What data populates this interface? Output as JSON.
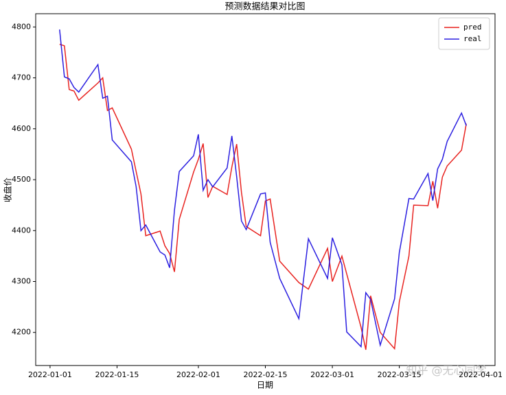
{
  "chart_data": {
    "type": "line",
    "title": "预测数据结果对比图",
    "x_label": "日期",
    "y_label": "收盘价",
    "annotation": "知乎 @无心同学",
    "x": [
      "2022-01-03",
      "2022-01-04",
      "2022-01-05",
      "2022-01-06",
      "2022-01-07",
      "2022-01-11",
      "2022-01-12",
      "2022-01-13",
      "2022-01-14",
      "2022-01-18",
      "2022-01-19",
      "2022-01-20",
      "2022-01-21",
      "2022-01-24",
      "2022-01-25",
      "2022-01-26",
      "2022-01-27",
      "2022-01-28",
      "2022-01-31",
      "2022-02-01",
      "2022-02-02",
      "2022-02-03",
      "2022-02-04",
      "2022-02-07",
      "2022-02-08",
      "2022-02-09",
      "2022-02-10",
      "2022-02-11",
      "2022-02-14",
      "2022-02-15",
      "2022-02-16",
      "2022-02-18",
      "2022-02-22",
      "2022-02-24",
      "2022-02-28",
      "2022-03-01",
      "2022-03-03",
      "2022-03-04",
      "2022-03-07",
      "2022-03-08",
      "2022-03-09",
      "2022-03-11",
      "2022-03-14",
      "2022-03-15",
      "2022-03-17",
      "2022-03-18",
      "2022-03-21",
      "2022-03-22",
      "2022-03-23",
      "2022-03-24",
      "2022-03-25",
      "2022-03-28",
      "2022-03-29"
    ],
    "series": [
      {
        "name": "pred",
        "color": "#e8221f",
        "values": [
          4766,
          4763,
          4677,
          4674,
          4656,
          4690,
          4700,
          4636,
          4641,
          4560,
          4516,
          4472,
          4390,
          4399,
          4370,
          4355,
          4319,
          4422,
          4515,
          4540,
          4571,
          4465,
          4487,
          4471,
          4525,
          4570,
          4475,
          4408,
          4390,
          4458,
          4462,
          4340,
          4298,
          4285,
          4365,
          4300,
          4350,
          4315,
          4210,
          4166,
          4272,
          4200,
          4168,
          4260,
          4350,
          4450,
          4449,
          4497,
          4444,
          4505,
          4527,
          4558,
          4610
        ]
      },
      {
        "name": "real",
        "color": "#2a1ee0",
        "values": [
          4795,
          4702,
          4698,
          4681,
          4672,
          4726,
          4660,
          4664,
          4578,
          4535,
          4486,
          4400,
          4411,
          4358,
          4352,
          4327,
          4440,
          4516,
          4547,
          4589,
          4479,
          4500,
          4486,
          4523,
          4586,
          4506,
          4419,
          4402,
          4472,
          4474,
          4377,
          4306,
          4227,
          4384,
          4306,
          4386,
          4333,
          4201,
          4172,
          4278,
          4265,
          4175,
          4266,
          4357,
          4463,
          4462,
          4512,
          4459,
          4521,
          4540,
          4575,
          4631,
          4606
        ]
      }
    ],
    "xlim": [
      "2021-12-29",
      "2022-04-04"
    ],
    "xticks": [
      "2022-01-01",
      "2022-01-15",
      "2022-02-01",
      "2022-02-15",
      "2022-03-01",
      "2022-03-15",
      "2022-04-01"
    ],
    "ylim": [
      4135,
      4826
    ],
    "yticks": [
      4200,
      4300,
      4400,
      4500,
      4600,
      4700,
      4800
    ],
    "legend": "upper right"
  }
}
